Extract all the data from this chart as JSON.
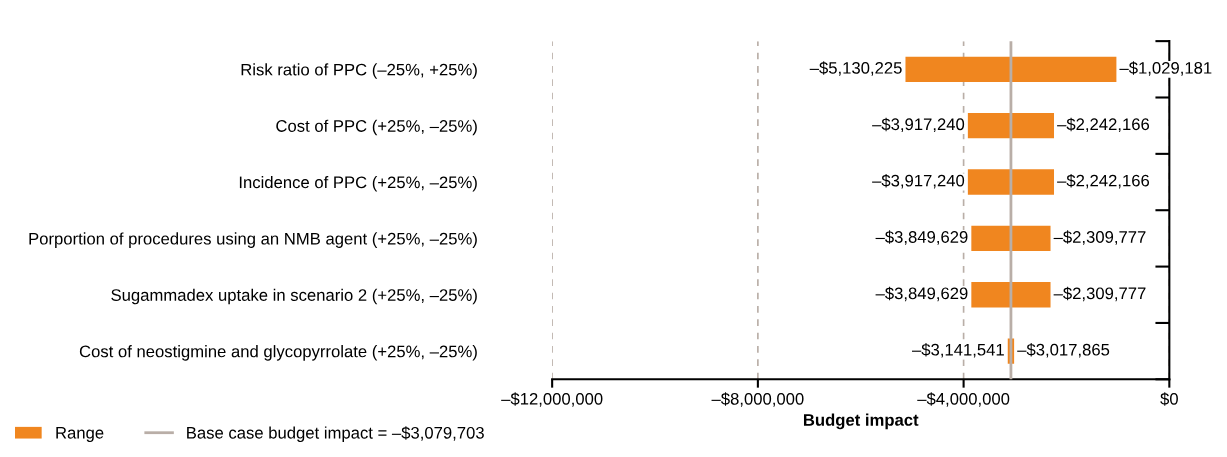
{
  "chart_data": {
    "type": "bar",
    "orientation": "horizontal",
    "xlabel": "Budget impact",
    "categories": [
      "Risk ratio of PPC (–25%, +25%)",
      "Cost of PPC (+25%, –25%)",
      "Incidence of PPC (+25%, –25%)",
      "Porportion of procedures using an NMB agent (+25%, –25%)",
      "Sugammadex uptake in scenario 2 (+25%, –25%)",
      "Cost of neostigmine and glycopyrrolate (+25%, –25%)"
    ],
    "series": [
      {
        "name": "Range",
        "color": "#f0861f",
        "base": [
          -5130225,
          -3917240,
          -3917240,
          -3849629,
          -3849629,
          -3141541
        ],
        "values": [
          4101044,
          1675074,
          1675074,
          1539852,
          1539852,
          123676
        ]
      }
    ],
    "xlim": [
      -12000000,
      0
    ],
    "xticks": [
      {
        "value": -12000000,
        "label": "–$12,000,000"
      },
      {
        "value": -8000000,
        "label": "–$8,000,000"
      },
      {
        "value": -4000000,
        "label": "–$4,000,000"
      },
      {
        "value": 0,
        "label": "$0"
      }
    ],
    "grid": "x",
    "ref_lines": [
      {
        "axis": "x",
        "value": -3079703,
        "label": "Base case budget impact = –$3,079,703",
        "color": "#b9aea7"
      }
    ],
    "annotations": [
      {
        "text": "–$5,130,225",
        "x": -5130225,
        "y": "Risk ratio of PPC (–25%, +25%)"
      },
      {
        "text": "–$1,029,181",
        "x": -1029181,
        "y": "Risk ratio of PPC (–25%, +25%)"
      },
      {
        "text": "–$3,917,240",
        "x": -3917240,
        "y": "Cost of PPC (+25%, –25%)"
      },
      {
        "text": "–$2,242,166",
        "x": -2242166,
        "y": "Cost of PPC (+25%, –25%)"
      },
      {
        "text": "–$3,917,240",
        "x": -3917240,
        "y": "Incidence of PPC (+25%, –25%)"
      },
      {
        "text": "–$2,242,166",
        "x": -2242166,
        "y": "Incidence of PPC (+25%, –25%)"
      },
      {
        "text": "–$3,849,629",
        "x": -3849629,
        "y": "Porportion of procedures using an NMB agent (+25%, –25%)"
      },
      {
        "text": "–$2,309,777",
        "x": -2309777,
        "y": "Porportion of procedures using an NMB agent (+25%, –25%)"
      },
      {
        "text": "–$3,849,629",
        "x": -3849629,
        "y": "Sugammadex uptake in scenario 2 (+25%, –25%)"
      },
      {
        "text": "–$2,309,777",
        "x": -2309777,
        "y": "Sugammadex uptake in scenario 2 (+25%, –25%)"
      },
      {
        "text": "–$3,141,541",
        "x": -3141541,
        "y": "Cost of neostigmine and glycopyrrolate (+25%, –25%)"
      },
      {
        "text": "–$3,017,865",
        "x": -3017865,
        "y": "Cost of neostigmine and glycopyrrolate (+25%, –25%)"
      }
    ],
    "legend": "bottom left"
  }
}
